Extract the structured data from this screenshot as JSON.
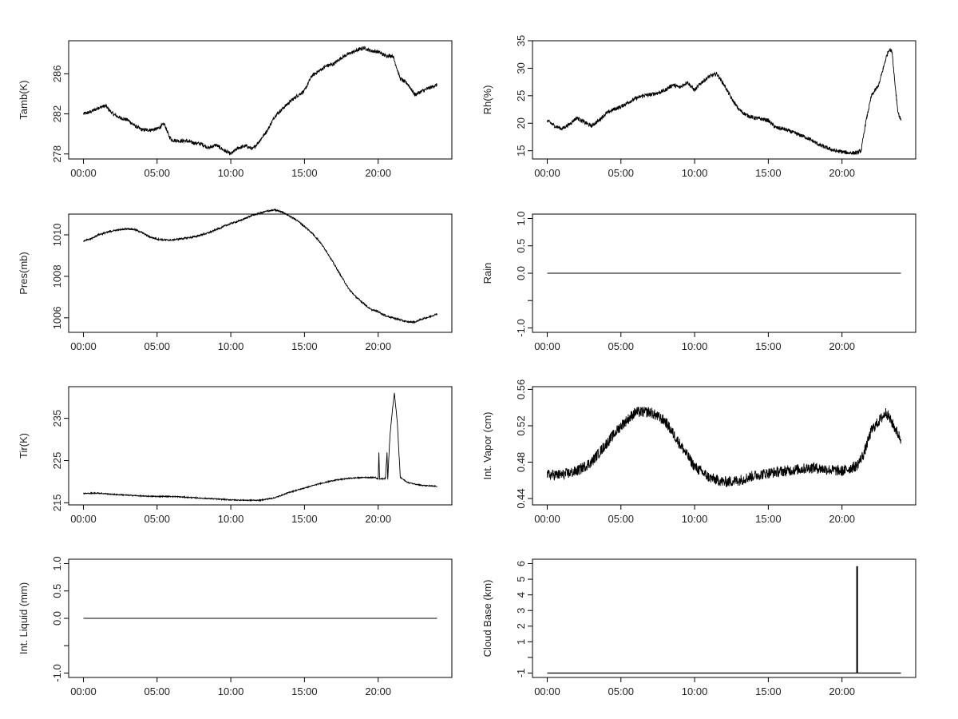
{
  "chart_data": [
    {
      "type": "line",
      "ylabel": "Tamb(K)",
      "xlim": [
        -1.0,
        25.0
      ],
      "ylim": [
        277.5,
        289.3
      ],
      "xticks": [
        0,
        5,
        10,
        15,
        20
      ],
      "xtick_labels": [
        "00:00",
        "05:00",
        "10:00",
        "15:00",
        "20:00"
      ],
      "yticks": [
        278,
        282,
        286
      ],
      "ytick_labels": [
        "278",
        "282",
        "286"
      ],
      "series": [
        {
          "x": [
            0,
            0.5,
            1,
            1.5,
            2,
            2.5,
            3,
            3.5,
            4,
            4.5,
            5,
            5.5,
            5.8,
            6,
            6.5,
            7,
            7.5,
            8,
            8.5,
            9,
            9.5,
            10,
            10.5,
            11,
            11.5,
            12,
            12.5,
            13,
            13.5,
            14,
            14.5,
            15,
            15.5,
            16,
            16.5,
            17,
            17.5,
            18,
            18.5,
            19,
            19.5,
            20,
            20.5,
            21,
            21.5,
            22,
            22.5,
            23,
            23.5,
            24
          ],
          "y": [
            282.0,
            282.2,
            282.6,
            282.8,
            282.0,
            281.6,
            281.4,
            280.8,
            280.4,
            280.4,
            280.5,
            281.0,
            279.8,
            279.4,
            279.3,
            279.3,
            279.1,
            279.0,
            278.6,
            278.9,
            278.4,
            278.0,
            278.6,
            278.8,
            278.5,
            279.4,
            280.4,
            281.8,
            282.5,
            283.2,
            283.8,
            284.3,
            285.8,
            286.3,
            286.8,
            287.0,
            287.6,
            288.0,
            288.3,
            288.6,
            288.3,
            288.2,
            287.8,
            287.8,
            285.5,
            285.0,
            283.9,
            284.3,
            284.6,
            284.9
          ]
        }
      ]
    },
    {
      "type": "line",
      "ylabel": "Rh(%)",
      "xlim": [
        -1.0,
        25.0
      ],
      "ylim": [
        13.5,
        35.0
      ],
      "xticks": [
        0,
        5,
        10,
        15,
        20
      ],
      "xtick_labels": [
        "00:00",
        "05:00",
        "10:00",
        "15:00",
        "20:00"
      ],
      "yticks": [
        15,
        20,
        25,
        30,
        35
      ],
      "ytick_labels": [
        "15",
        "20",
        "25",
        "30",
        "35"
      ],
      "series": [
        {
          "x": [
            0,
            0.5,
            1,
            1.5,
            2,
            2.5,
            3,
            3.5,
            4,
            4.5,
            5,
            5.5,
            6,
            6.5,
            7,
            7.5,
            8,
            8.5,
            9,
            9.5,
            10,
            10.5,
            11,
            11.5,
            12,
            12.5,
            13,
            13.5,
            14,
            14.5,
            15,
            15.5,
            16,
            16.5,
            17,
            17.5,
            18,
            18.5,
            19,
            19.5,
            20,
            20.5,
            21,
            21.3,
            21.6,
            22,
            22.5,
            22.8,
            23,
            23.2,
            23.4,
            23.6,
            23.8,
            24
          ],
          "y": [
            20.5,
            19.5,
            19.0,
            19.8,
            21.0,
            20.2,
            19.5,
            20.5,
            21.8,
            22.5,
            23.0,
            23.8,
            24.5,
            25.0,
            25.2,
            25.5,
            26.0,
            27.0,
            26.5,
            27.5,
            26.0,
            27.5,
            28.5,
            29.0,
            27.0,
            24.5,
            22.5,
            21.5,
            21.0,
            20.8,
            20.5,
            19.2,
            19.0,
            18.5,
            18.0,
            17.5,
            16.8,
            16.0,
            15.5,
            15.0,
            14.8,
            14.6,
            14.6,
            15.0,
            20.0,
            25.0,
            27.0,
            30.0,
            32.0,
            33.5,
            33.0,
            27.0,
            22.0,
            20.5
          ]
        }
      ]
    },
    {
      "type": "line",
      "ylabel": "Pres(mb)",
      "xlim": [
        -1.0,
        25.0
      ],
      "ylim": [
        1005.3,
        1011.0
      ],
      "xticks": [
        0,
        5,
        10,
        15,
        20
      ],
      "xtick_labels": [
        "00:00",
        "05:00",
        "10:00",
        "15:00",
        "20:00"
      ],
      "yticks": [
        1006,
        1008,
        1010
      ],
      "ytick_labels": [
        "1006",
        "1008",
        "1010"
      ],
      "series": [
        {
          "x": [
            0,
            0.5,
            1,
            1.5,
            2,
            2.5,
            3,
            3.5,
            4,
            4.5,
            5,
            5.5,
            6,
            6.5,
            7,
            7.5,
            8,
            8.5,
            9,
            9.5,
            10,
            10.5,
            11,
            11.5,
            12,
            12.5,
            13,
            13.5,
            14,
            14.5,
            15,
            15.5,
            16,
            16.5,
            17,
            17.5,
            18,
            18.5,
            19,
            19.5,
            20,
            20.5,
            21,
            21.5,
            22,
            22.5,
            23,
            23.5,
            24
          ],
          "y": [
            1009.7,
            1009.8,
            1010.0,
            1010.1,
            1010.2,
            1010.25,
            1010.3,
            1010.25,
            1010.1,
            1009.9,
            1009.8,
            1009.75,
            1009.75,
            1009.8,
            1009.85,
            1009.9,
            1010.0,
            1010.1,
            1010.25,
            1010.4,
            1010.55,
            1010.65,
            1010.8,
            1010.95,
            1011.05,
            1011.15,
            1011.2,
            1011.1,
            1010.9,
            1010.7,
            1010.4,
            1010.1,
            1009.7,
            1009.2,
            1008.6,
            1008.0,
            1007.4,
            1007.0,
            1006.7,
            1006.4,
            1006.3,
            1006.1,
            1006.0,
            1005.9,
            1005.8,
            1005.8,
            1005.95,
            1006.05,
            1006.2
          ]
        }
      ]
    },
    {
      "type": "line",
      "ylabel": "Rain",
      "xlim": [
        -1.0,
        25.0
      ],
      "ylim": [
        -1.08,
        1.08
      ],
      "xticks": [
        0,
        5,
        10,
        15,
        20
      ],
      "xtick_labels": [
        "00:00",
        "05:00",
        "10:00",
        "15:00",
        "20:00"
      ],
      "yticks": [
        -1.0,
        0.0,
        0.5,
        1.0
      ],
      "ytick_labels": [
        "-1.0",
        "0.0",
        "0.5",
        "1.0"
      ],
      "extra_ticks": [
        -0.5
      ],
      "series": [
        {
          "x": [
            0,
            24
          ],
          "y": [
            0,
            0
          ]
        }
      ]
    },
    {
      "type": "line",
      "ylabel": "Tir(K)",
      "xlim": [
        -1.0,
        25.0
      ],
      "ylim": [
        214.5,
        242.5
      ],
      "xticks": [
        0,
        5,
        10,
        15,
        20
      ],
      "xtick_labels": [
        "00:00",
        "05:00",
        "10:00",
        "15:00",
        "20:00"
      ],
      "yticks": [
        215,
        225,
        235
      ],
      "ytick_labels": [
        "215",
        "225",
        "235"
      ],
      "series": [
        {
          "x": [
            0,
            1,
            2,
            3,
            4,
            5,
            6,
            7,
            8,
            9,
            10,
            11,
            12,
            13,
            14,
            15,
            16,
            17,
            18,
            19,
            19.8,
            20.0,
            20.05,
            20.1,
            20.5,
            20.6,
            20.65,
            20.8,
            21.0,
            21.1,
            21.3,
            21.5,
            22,
            23,
            24
          ],
          "y": [
            217.2,
            217.3,
            217.0,
            216.8,
            216.6,
            216.5,
            216.5,
            216.3,
            216.1,
            215.9,
            215.7,
            215.6,
            215.6,
            216.2,
            217.5,
            218.5,
            219.5,
            220.3,
            220.8,
            221.0,
            221.0,
            220.6,
            227.0,
            220.6,
            220.8,
            227.0,
            220.5,
            231.0,
            238.0,
            241.0,
            234.0,
            221.0,
            219.8,
            219.1,
            218.9
          ]
        }
      ]
    },
    {
      "type": "line",
      "ylabel": "Int. Vapor (cm)",
      "xlim": [
        -1.0,
        25.0
      ],
      "ylim": [
        0.433,
        0.563
      ],
      "xticks": [
        0,
        5,
        10,
        15,
        20
      ],
      "xtick_labels": [
        "00:00",
        "05:00",
        "10:00",
        "15:00",
        "20:00"
      ],
      "yticks": [
        0.44,
        0.48,
        0.52,
        0.56
      ],
      "ytick_labels": [
        "0.44",
        "0.48",
        "0.52",
        "0.56"
      ],
      "series": [
        {
          "x": [
            0,
            1,
            2,
            3,
            4,
            5,
            6,
            7,
            8,
            9,
            10,
            11,
            12,
            13,
            14,
            15,
            16,
            17,
            18,
            19,
            20,
            21,
            21.5,
            22,
            22.5,
            23,
            23.5,
            24
          ],
          "y": [
            0.466,
            0.466,
            0.47,
            0.48,
            0.5,
            0.52,
            0.535,
            0.535,
            0.525,
            0.5,
            0.475,
            0.463,
            0.458,
            0.46,
            0.465,
            0.468,
            0.47,
            0.472,
            0.474,
            0.472,
            0.47,
            0.476,
            0.49,
            0.515,
            0.525,
            0.535,
            0.52,
            0.505
          ]
        }
      ]
    },
    {
      "type": "line",
      "ylabel": "Int. Liquid (mm)",
      "xlim": [
        -1.0,
        25.0
      ],
      "ylim": [
        -1.08,
        1.08
      ],
      "xticks": [
        0,
        5,
        10,
        15,
        20
      ],
      "xtick_labels": [
        "00:00",
        "05:00",
        "10:00",
        "15:00",
        "20:00"
      ],
      "yticks": [
        -1.0,
        0.0,
        0.5,
        1.0
      ],
      "ytick_labels": [
        "-1.0",
        "0.0",
        "0.5",
        "1.0"
      ],
      "extra_ticks": [
        -0.5
      ],
      "series": [
        {
          "x": [
            0,
            24
          ],
          "y": [
            0,
            0
          ]
        }
      ]
    },
    {
      "type": "line",
      "ylabel": "Cloud Base (km)",
      "xlim": [
        -1.0,
        25.0
      ],
      "ylim": [
        -1.28,
        6.28
      ],
      "xticks": [
        0,
        5,
        10,
        15,
        20
      ],
      "xtick_labels": [
        "00:00",
        "05:00",
        "10:00",
        "15:00",
        "20:00"
      ],
      "yticks": [
        -1,
        1,
        2,
        3,
        4,
        5,
        6
      ],
      "ytick_labels": [
        "-1",
        "1",
        "2",
        "3",
        "4",
        "5",
        "6"
      ],
      "extra_ticks": [
        0
      ],
      "series": [
        {
          "x": [
            0,
            21.0,
            21.0,
            21.05,
            21.05,
            24
          ],
          "y": [
            -1,
            -1,
            5.8,
            5.8,
            -1,
            -1
          ]
        }
      ]
    }
  ]
}
